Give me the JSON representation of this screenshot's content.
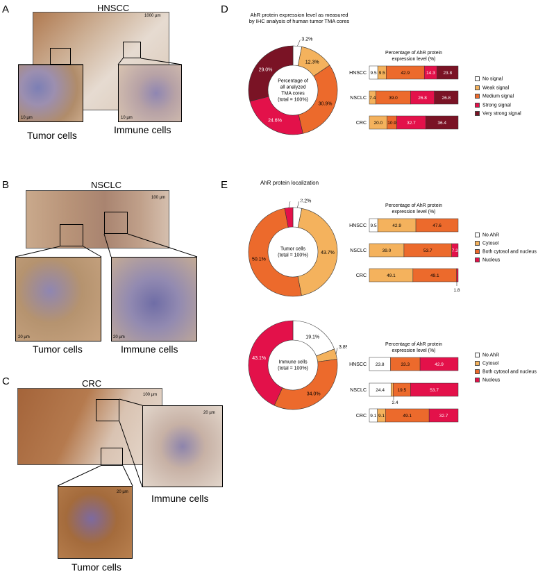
{
  "colors": {
    "none": "#ffffff",
    "weak": "#f4b25d",
    "medium": "#ec6a2c",
    "strong": "#e3114a",
    "very_strong": "#7a1325",
    "micro_bg": "#d8c3b0",
    "micro_tissue": "#9c6a3f"
  },
  "panelA": {
    "letter": "A",
    "title": "HNSCC",
    "scale_main": "1000 µm",
    "scale_left": "10 µm",
    "scale_right": "10 µm",
    "label_left": "Tumor cells",
    "label_right": "Immune cells"
  },
  "panelB": {
    "letter": "B",
    "title": "NSCLC",
    "scale_main": "100 µm",
    "scale_left": "20 µm",
    "scale_right": "20 µm",
    "label_left": "Tumor cells",
    "label_right": "Immune cells"
  },
  "panelC": {
    "letter": "C",
    "title": "CRC",
    "scale_main": "100 µm",
    "scale_zoom1": "20 µm",
    "scale_zoom2": "20 µm",
    "label_immune": "Immune cells",
    "label_tumor": "Tumor cells"
  },
  "panelD": {
    "letter": "D",
    "title_line1": "AhR protein expression level as measured",
    "title_line2": "by IHC analysis of human tumor TMA cores"
  },
  "panelE": {
    "letter": "E",
    "title": "AhR protein localization"
  },
  "chart_data": [
    {
      "type": "pie",
      "id": "D-donut",
      "center_lines": [
        "Percentage of",
        "all analyzed",
        "TMA cores",
        "(total = 100%)"
      ],
      "slices": [
        {
          "label": "No signal",
          "value": 3.2,
          "text": "3.2%"
        },
        {
          "label": "Weak signal",
          "value": 12.3,
          "text": "12.3%"
        },
        {
          "label": "Medium signal",
          "value": 30.9,
          "text": "30.9%"
        },
        {
          "label": "Strong signal",
          "value": 24.6,
          "text": "24.6%"
        },
        {
          "label": "Very strong signal",
          "value": 29.0,
          "text": "29.0%"
        }
      ]
    },
    {
      "type": "bar",
      "id": "D-bars",
      "orientation": "horizontal",
      "stacked": true,
      "title_line1": "Percentage of  AhR protein",
      "title_line2": "expression level (%)",
      "categories": [
        "HNSCC",
        "NSCLC",
        "CRC"
      ],
      "series": [
        {
          "name": "No signal",
          "values": [
            9.5,
            0,
            0
          ]
        },
        {
          "name": "Weak signal",
          "values": [
            9.5,
            7.4,
            20.0
          ]
        },
        {
          "name": "Medium signal",
          "values": [
            42.9,
            39.0,
            10.9
          ]
        },
        {
          "name": "Strong signal",
          "values": [
            14.3,
            26.8,
            32.7
          ]
        },
        {
          "name": "Very strong signal",
          "values": [
            23.8,
            26.8,
            36.4
          ]
        }
      ],
      "labels": [
        [
          "9.5",
          "9.5",
          "42.9",
          "14.3",
          "23.8"
        ],
        [
          "",
          "7.4",
          "39.0",
          "26.8",
          "26.8"
        ],
        [
          "",
          "20.0",
          "10.9",
          "32.7",
          "36.4"
        ]
      ]
    },
    {
      "type": "pie",
      "id": "E-tumor-donut",
      "center_lines": [
        "Tumor cells",
        "(total = 100%)"
      ],
      "slices": [
        {
          "label": "No AhR",
          "value": 3.2,
          "text": "3.2%"
        },
        {
          "label": "Cytosol",
          "value": 43.7,
          "text": "43.7%"
        },
        {
          "label": "Both cytosol and nucleus",
          "value": 50.1,
          "text": "50.1%"
        },
        {
          "label": "Nucleus",
          "value": 3.0,
          "text": "3.0%"
        }
      ]
    },
    {
      "type": "bar",
      "id": "E-tumor-bars",
      "orientation": "horizontal",
      "stacked": true,
      "title_line1": "Percentage of  AhR protein",
      "title_line2": "expression level (%)",
      "categories": [
        "HNSCC",
        "NSCLC",
        "CRC"
      ],
      "series": [
        {
          "name": "No AhR",
          "values": [
            9.5,
            0,
            0
          ]
        },
        {
          "name": "Cytosol",
          "values": [
            42.9,
            39.0,
            49.1
          ]
        },
        {
          "name": "Both cytosol and nucleus",
          "values": [
            47.6,
            53.7,
            49.1
          ]
        },
        {
          "name": "Nucleus",
          "values": [
            0,
            7.3,
            1.8
          ]
        }
      ],
      "labels": [
        [
          "9.5",
          "42.9",
          "47.6",
          ""
        ],
        [
          "",
          "39.0",
          "53.7",
          "7.3"
        ],
        [
          "",
          "49.1",
          "49.1",
          ""
        ]
      ],
      "annotation": "1.8"
    },
    {
      "type": "pie",
      "id": "E-immune-donut",
      "center_lines": [
        "Immune cells",
        "(total = 100%)"
      ],
      "slices": [
        {
          "label": "No AhR",
          "value": 19.1,
          "text": "19.1%"
        },
        {
          "label": "Cytosol",
          "value": 3.8,
          "text": "3.8%"
        },
        {
          "label": "Both cytosol and nucleus",
          "value": 34.0,
          "text": "34.0%"
        },
        {
          "label": "Nucleus",
          "value": 43.1,
          "text": "43.1%"
        }
      ]
    },
    {
      "type": "bar",
      "id": "E-immune-bars",
      "orientation": "horizontal",
      "stacked": true,
      "title_line1": "Percentage of  AhR protein",
      "title_line2": "expression level (%)",
      "categories": [
        "HNSCC",
        "NSCLC",
        "CRC"
      ],
      "series": [
        {
          "name": "No AhR",
          "values": [
            23.8,
            24.4,
            9.1
          ]
        },
        {
          "name": "Cytosol",
          "values": [
            0,
            2.4,
            9.1
          ]
        },
        {
          "name": "Both cytosol and nucleus",
          "values": [
            33.3,
            19.5,
            49.1
          ]
        },
        {
          "name": "Nucleus",
          "values": [
            42.9,
            53.7,
            32.7
          ]
        }
      ],
      "labels": [
        [
          "23.8",
          "",
          "33.3",
          "42.9"
        ],
        [
          "24.4",
          "",
          "19.5",
          "53.7"
        ],
        [
          "9.1",
          "9.1",
          "49.1",
          "32.7"
        ]
      ],
      "annotation": "2.4"
    }
  ],
  "legendD": [
    "No signal",
    "Weak signal",
    "Medium signal",
    "Strong signal",
    "Very strong signal"
  ],
  "legendE": [
    "No AhR",
    "Cytosol",
    "Both cytosol and nucleus",
    "Nucleus"
  ]
}
